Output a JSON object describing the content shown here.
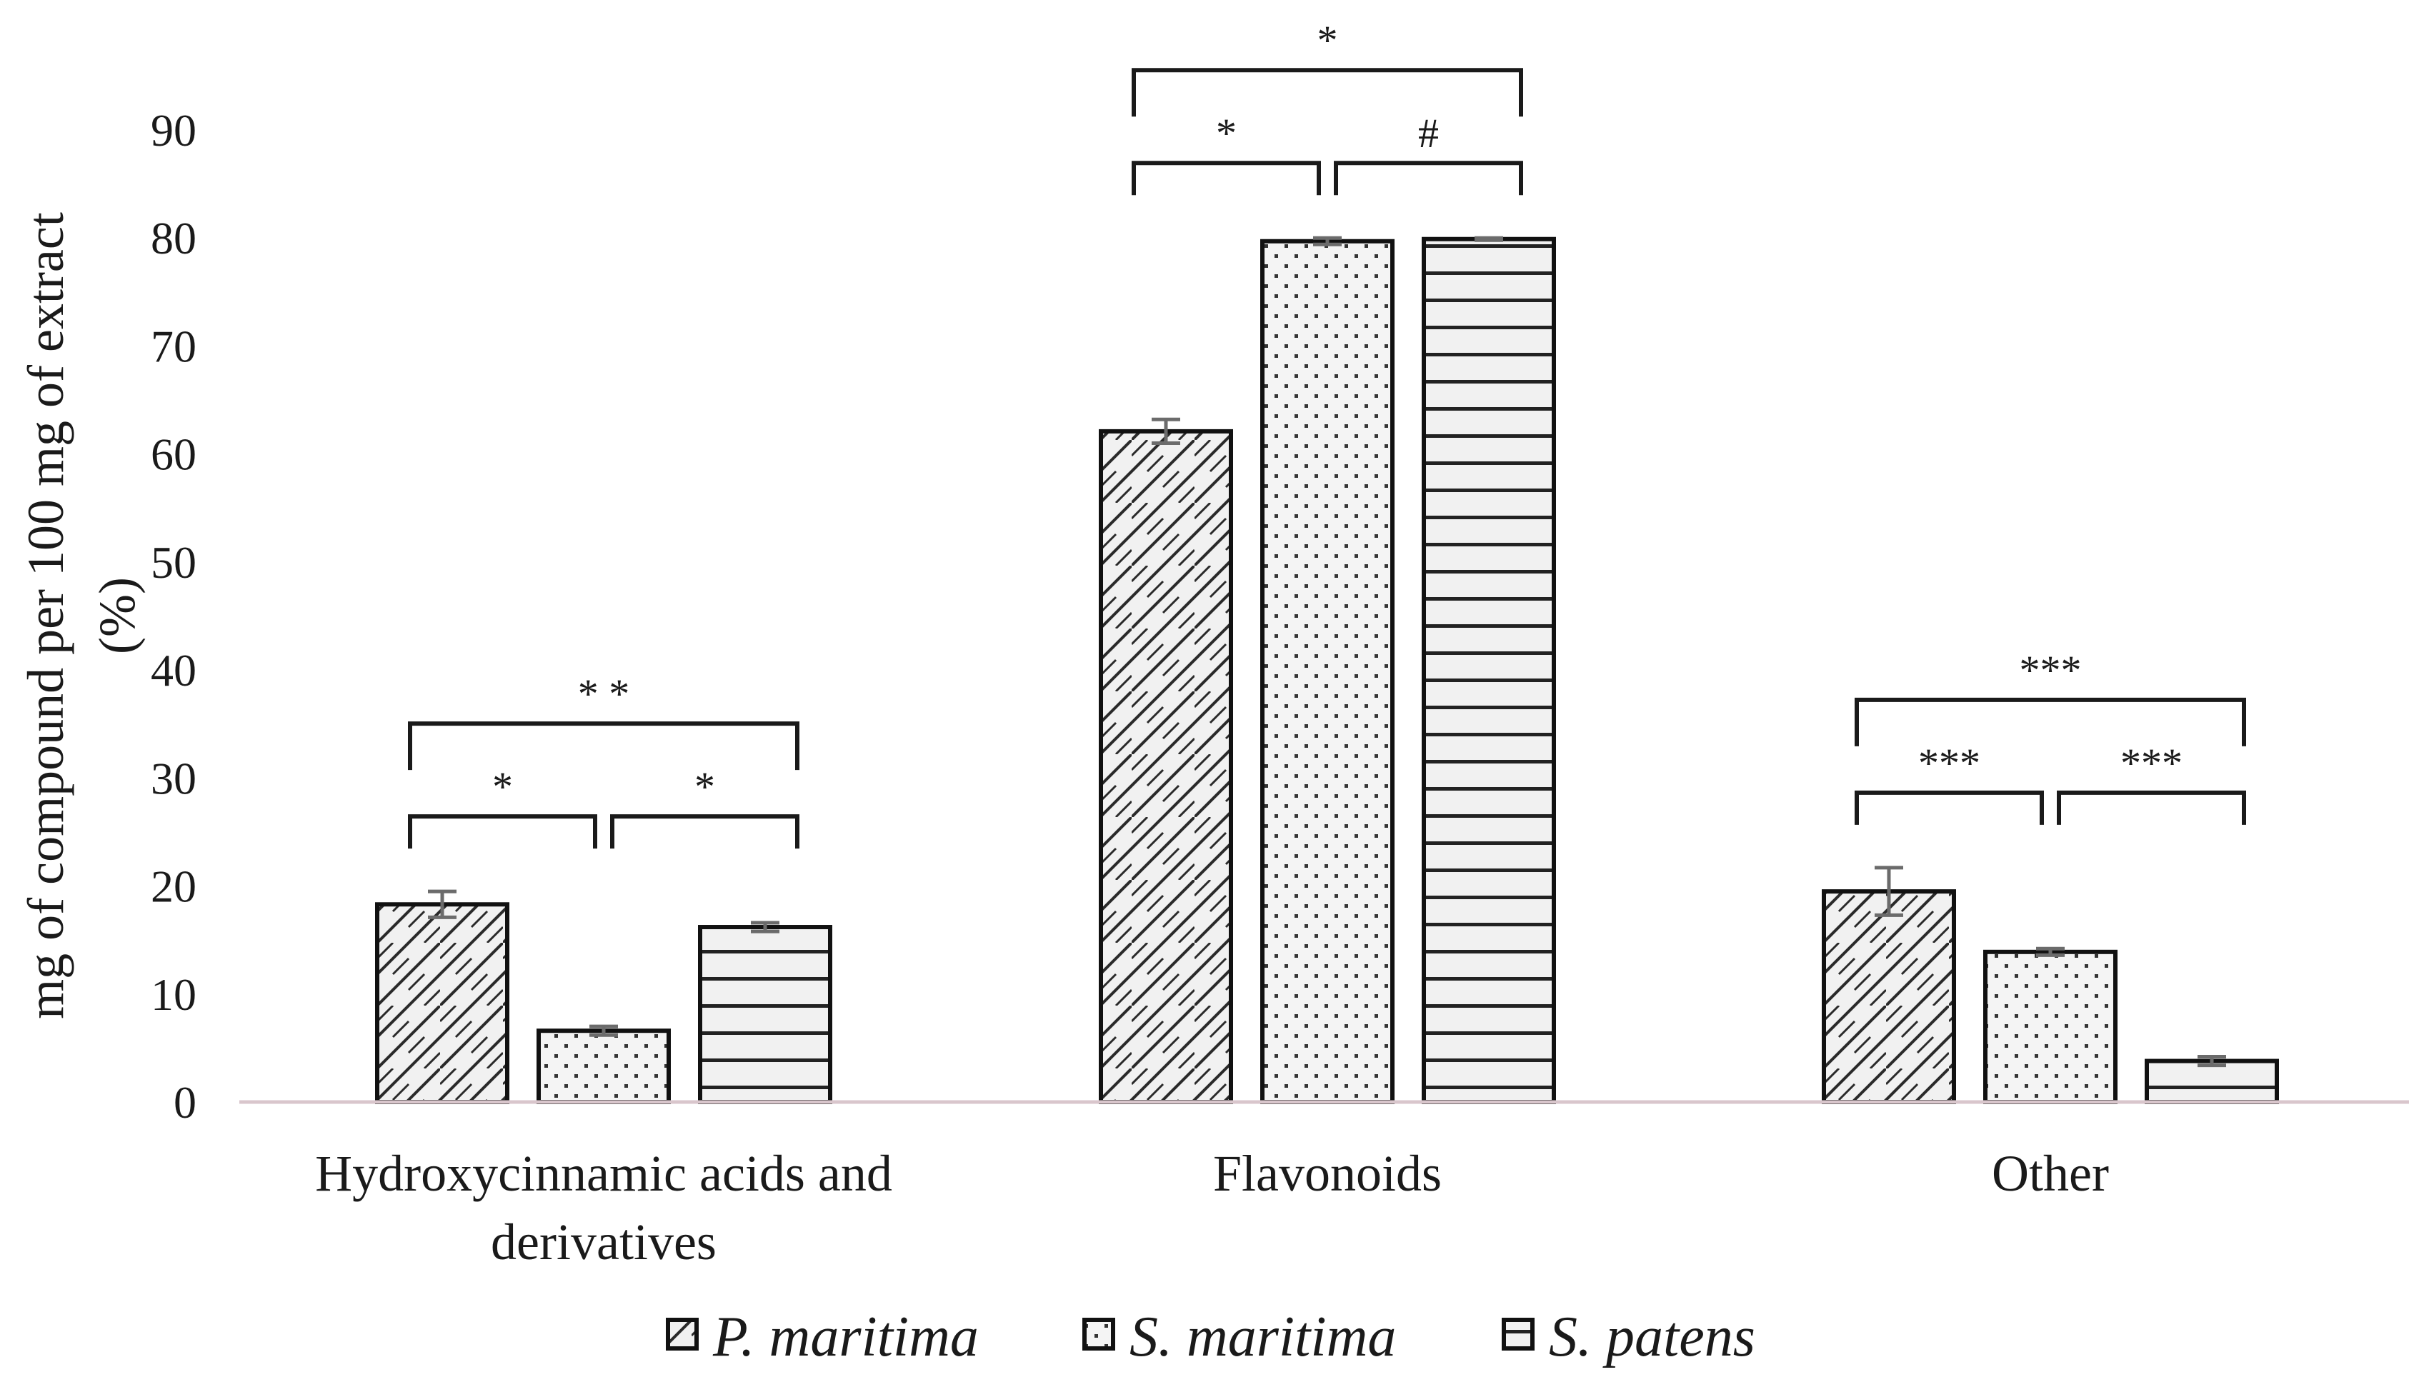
{
  "chart_data": {
    "type": "bar",
    "ylabel_lines": [
      "mg of compound per 100 mg of extract",
      "(%)"
    ],
    "ylim": [
      0,
      90
    ],
    "yticks": [
      0,
      10,
      20,
      30,
      40,
      50,
      60,
      70,
      80,
      90
    ],
    "ytick_labels": [
      "0",
      "10",
      "20",
      "30",
      "40",
      "50",
      "60",
      "70",
      "80",
      "90"
    ],
    "categories": [
      [
        "Hydroxycinnamic acids and",
        "derivatives"
      ],
      [
        "Flavonoids"
      ],
      [
        "Other"
      ]
    ],
    "series": [
      {
        "name": "P. maritima",
        "pattern": "diamond-crosshatch",
        "values": [
          18.3,
          62.1,
          19.5
        ],
        "errors": [
          1.2,
          1.1,
          2.2
        ]
      },
      {
        "name": "S. maritima",
        "pattern": "dots",
        "values": [
          6.6,
          79.7,
          13.9
        ],
        "errors": [
          0.4,
          0.3,
          0.3
        ]
      },
      {
        "name": "S. patens",
        "pattern": "horizontal-lines",
        "values": [
          16.2,
          79.9,
          3.8
        ],
        "errors": [
          0.4,
          0.1,
          0.4
        ]
      }
    ],
    "significance": [
      {
        "category": 0,
        "from": 0,
        "to": 1,
        "label": "*",
        "level": 1
      },
      {
        "category": 0,
        "from": 1,
        "to": 2,
        "label": "*",
        "level": 1
      },
      {
        "category": 0,
        "from": 0,
        "to": 2,
        "label": "* *",
        "level": 2
      },
      {
        "category": 1,
        "from": 0,
        "to": 1,
        "label": "*",
        "level": 1
      },
      {
        "category": 1,
        "from": 1,
        "to": 2,
        "label": "#",
        "level": 1
      },
      {
        "category": 1,
        "from": 0,
        "to": 2,
        "label": "*",
        "level": 2
      },
      {
        "category": 2,
        "from": 0,
        "to": 1,
        "label": "***",
        "level": 1
      },
      {
        "category": 2,
        "from": 1,
        "to": 2,
        "label": "***",
        "level": 1
      },
      {
        "category": 2,
        "from": 0,
        "to": 2,
        "label": "***",
        "level": 2
      }
    ],
    "legend_position": "bottom",
    "grid": false
  }
}
